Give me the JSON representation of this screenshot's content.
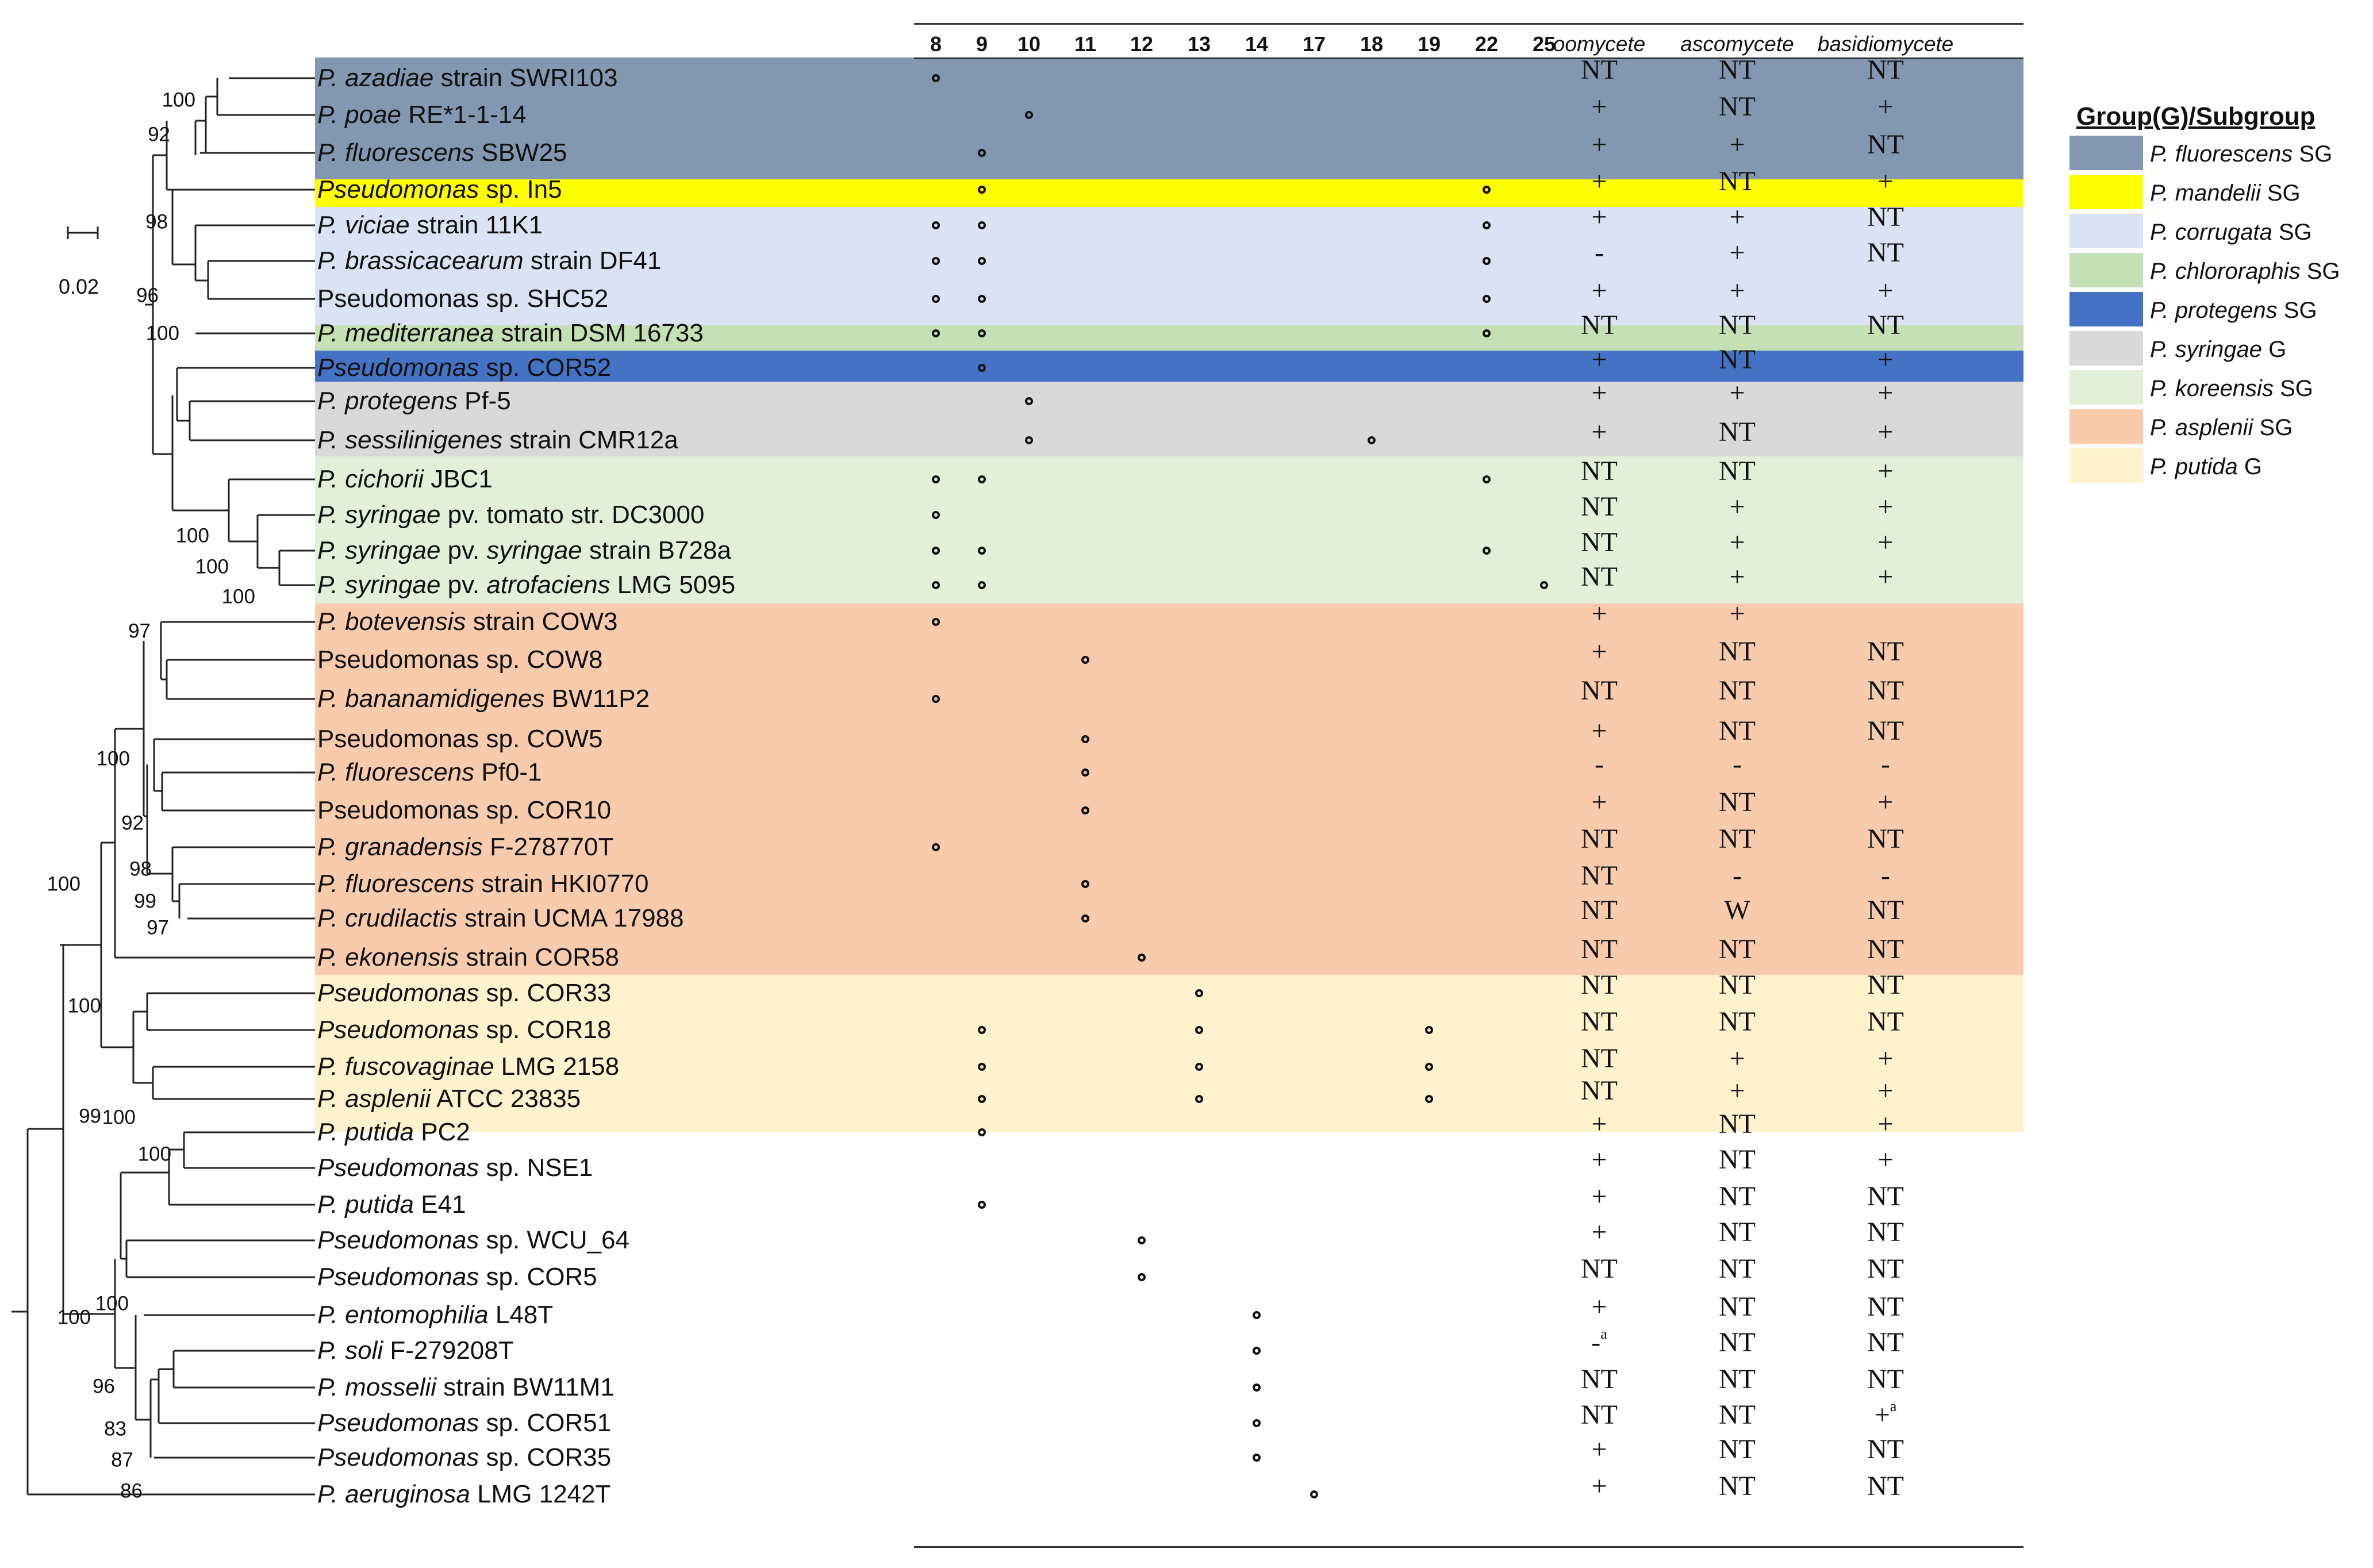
{
  "columns": [
    "8",
    "9",
    "10",
    "11",
    "12",
    "13",
    "14",
    "17",
    "18",
    "19",
    "22",
    "25"
  ],
  "test_columns": [
    "oomycete",
    "ascomycete",
    "basidiomycete"
  ],
  "scale_label": "0.02",
  "legend": {
    "title": "Group(G)/Subgroup",
    "items": [
      {
        "name": "P. fluorescens",
        "suffix": " SG",
        "color": "#8497b0"
      },
      {
        "name": "P. mandelii",
        "suffix": " SG",
        "color": "#ffff00"
      },
      {
        "name": "P. corrugata",
        "suffix": " SG",
        "color": "#dae3f3"
      },
      {
        "name": "P. chlororaphis",
        "suffix": " SG",
        "color": "#c5e0b4"
      },
      {
        "name": "P. protegens",
        "suffix": " SG",
        "color": "#4472c4"
      },
      {
        "name": "P. syringae",
        "suffix": " G",
        "color": "#d9d9d9"
      },
      {
        "name": "P. koreensis",
        "suffix": " SG",
        "color": "#e2f0d9"
      },
      {
        "name": "P. asplenii",
        "suffix": " SG",
        "color": "#f8cbad"
      },
      {
        "name": "P. putida",
        "suffix": " G",
        "color": "#fff2cc"
      }
    ]
  },
  "rows": [
    {
      "it": "P. azadiae",
      "rest": " strain SWRI103",
      "group": 0,
      "marks": [
        "8"
      ],
      "res": [
        "NT",
        "NT",
        "NT"
      ]
    },
    {
      "it": "P. poae",
      "rest": " RE*1-1-14",
      "group": 0,
      "marks": [
        "10"
      ],
      "res": [
        "+",
        "NT",
        "+"
      ]
    },
    {
      "it": "P. fluorescens",
      "rest": " SBW25",
      "group": 0,
      "marks": [
        "9"
      ],
      "res": [
        "+",
        "+",
        "NT"
      ]
    },
    {
      "it": "Pseudomonas",
      "rest": " sp. In5",
      "group": 1,
      "marks": [
        "9",
        "22"
      ],
      "res": [
        "+",
        "NT",
        "+"
      ]
    },
    {
      "it": "P. viciae",
      "rest": " strain 11K1",
      "group": 2,
      "marks": [
        "8",
        "9",
        "22"
      ],
      "res": [
        "+",
        "+",
        "NT"
      ]
    },
    {
      "it": "P. brassicacearum",
      "rest": " strain DF41",
      "group": 2,
      "marks": [
        "8",
        "9",
        "22"
      ],
      "res": [
        "-",
        "+",
        "NT"
      ]
    },
    {
      "it": "",
      "rest": "Pseudomonas sp. SHC52",
      "group": 2,
      "marks": [
        "8",
        "9",
        "22"
      ],
      "res": [
        "+",
        "+",
        "+"
      ]
    },
    {
      "it": "P. mediterranea",
      "rest": " strain DSM 16733",
      "group": 2,
      "marks": [
        "8",
        "9",
        "22"
      ],
      "res": [
        "NT",
        "NT",
        "NT"
      ]
    },
    {
      "it": "Pseudomonas",
      "rest": " sp. COR52",
      "group": 3,
      "marks": [
        "9"
      ],
      "res": [
        "+",
        "NT",
        "+"
      ]
    },
    {
      "it": "P. protegens",
      "rest": " Pf-5",
      "group": 4,
      "marks": [
        "10"
      ],
      "res": [
        "+",
        "+",
        "+"
      ]
    },
    {
      "it": "P. sessilinigenes",
      "rest": " strain CMR12a",
      "group": 4,
      "marks": [
        "10",
        "18"
      ],
      "res": [
        "+",
        "NT",
        "+"
      ]
    },
    {
      "it": "P. cichorii",
      "rest": " JBC1",
      "group": 5,
      "marks": [
        "8",
        "9",
        "22"
      ],
      "res": [
        "NT",
        "NT",
        "+"
      ]
    },
    {
      "it": "P. syringae",
      "rest": " pv. tomato str. DC3000",
      "group": 5,
      "marks": [
        "8"
      ],
      "res": [
        "NT",
        "+",
        "+"
      ]
    },
    {
      "it": "P. syringae",
      "rest": " pv. ",
      "it2": "syringae",
      "rest2": " strain B728a",
      "group": 5,
      "marks": [
        "8",
        "9",
        "22"
      ],
      "res": [
        "NT",
        "+",
        "+"
      ]
    },
    {
      "it": "P. syringae",
      "rest": " pv. ",
      "it2": "atrofaciens",
      "rest2": " LMG 5095",
      "group": 5,
      "marks": [
        "8",
        "9",
        "25"
      ],
      "res": [
        "NT",
        "+",
        "+"
      ]
    },
    {
      "it": "P. botevensis",
      "rest": " strain COW3",
      "group": 6,
      "marks": [
        "8"
      ],
      "res": [
        "+",
        "+",
        ""
      ]
    },
    {
      "it": "",
      "rest": "Pseudomonas sp. COW8",
      "group": 6,
      "marks": [
        "11"
      ],
      "res": [
        "+",
        "NT",
        "NT"
      ]
    },
    {
      "it": "P. bananamidigenes",
      "rest": "  BW11P2",
      "group": 6,
      "marks": [
        "8"
      ],
      "res": [
        "NT",
        "NT",
        "NT"
      ]
    },
    {
      "it": "",
      "rest": "Pseudomonas sp. COW5",
      "group": 6,
      "marks": [
        "11"
      ],
      "res": [
        "+",
        "NT",
        "NT"
      ]
    },
    {
      "it": "P. fluorescens",
      "rest": " Pf0-1",
      "group": 6,
      "marks": [
        "11"
      ],
      "res": [
        "-",
        "-",
        "-"
      ]
    },
    {
      "it": "",
      "rest": "Pseudomonas sp. COR10",
      "group": 6,
      "marks": [
        "11"
      ],
      "res": [
        "+",
        "NT",
        "+"
      ]
    },
    {
      "it": "P. granadensis",
      "rest": " F-278770T",
      "group": 6,
      "marks": [
        "8"
      ],
      "res": [
        "NT",
        "NT",
        "NT"
      ]
    },
    {
      "it": "P. fluorescens",
      "rest": " strain HKI0770",
      "group": 6,
      "marks": [
        "11"
      ],
      "res": [
        "NT",
        "-",
        "-"
      ]
    },
    {
      "it": "P. crudilactis",
      "rest": " strain UCMA 17988",
      "group": 6,
      "marks": [
        "11"
      ],
      "res": [
        "NT",
        "W",
        "NT"
      ]
    },
    {
      "it": "P. ekonensis",
      "rest": " strain COR58",
      "group": 6,
      "marks": [
        "12"
      ],
      "res": [
        "NT",
        "NT",
        "NT"
      ]
    },
    {
      "it": "Pseudomonas",
      "rest": " sp. COR33",
      "group": 7,
      "marks": [
        "13"
      ],
      "res": [
        "NT",
        "NT",
        "NT"
      ]
    },
    {
      "it": "Pseudomonas",
      "rest": " sp. COR18",
      "group": 7,
      "marks": [
        "9",
        "13",
        "19"
      ],
      "res": [
        "NT",
        "NT",
        "NT"
      ]
    },
    {
      "it": "P. fuscovaginae",
      "rest": " LMG 2158",
      "group": 7,
      "marks": [
        "9",
        "13",
        "19"
      ],
      "res": [
        "NT",
        "+",
        "+"
      ]
    },
    {
      "it": "P. asplenii",
      "rest": " ATCC 23835",
      "group": 7,
      "marks": [
        "9",
        "13",
        "19"
      ],
      "res": [
        "NT",
        "+",
        "+"
      ]
    },
    {
      "it": "P. putida",
      "rest": " PC2",
      "group": 8,
      "marks": [
        "9"
      ],
      "res": [
        "+",
        "NT",
        "+"
      ]
    },
    {
      "it": "Pseudomonas",
      "rest": " sp. NSE1",
      "group": 8,
      "marks": [],
      "res": [
        "+",
        "NT",
        "+"
      ]
    },
    {
      "it": "P. putida",
      "rest": " E41",
      "group": 8,
      "marks": [
        "9"
      ],
      "res": [
        "+",
        "NT",
        "NT"
      ]
    },
    {
      "it": "Pseudomonas",
      "rest": " sp. WCU_64",
      "group": 8,
      "marks": [
        "12"
      ],
      "res": [
        "+",
        "NT",
        "NT"
      ]
    },
    {
      "it": "Pseudomonas",
      "rest": " sp. COR5",
      "group": 8,
      "marks": [
        "12"
      ],
      "res": [
        "NT",
        "NT",
        "NT"
      ]
    },
    {
      "it": "P. entomophilia",
      "rest": " L48T",
      "group": 8,
      "marks": [
        "14"
      ],
      "res": [
        "+",
        "NT",
        "NT"
      ]
    },
    {
      "it": "P. soli",
      "rest": " F-279208T",
      "group": 8,
      "marks": [
        "14"
      ],
      "res": [
        "-|a",
        "NT",
        "NT"
      ]
    },
    {
      "it": "P. mosselii",
      "rest": " strain BW11M1",
      "group": 8,
      "marks": [
        "14"
      ],
      "res": [
        "NT",
        "NT",
        "NT"
      ]
    },
    {
      "it": "Pseudomonas",
      "rest": " sp. COR51",
      "group": 8,
      "marks": [
        "14"
      ],
      "res": [
        "NT",
        "NT",
        "+|a"
      ]
    },
    {
      "it": "Pseudomonas",
      "rest": " sp. COR35",
      "group": 8,
      "marks": [
        "14"
      ],
      "res": [
        "+",
        "NT",
        "NT"
      ]
    },
    {
      "it": "P. aeruginosa",
      "rest": " LMG 1242T",
      "group": -1,
      "marks": [
        "17"
      ],
      "res": [
        "+",
        "NT",
        "NT"
      ]
    }
  ],
  "bootstrap": [
    "100",
    "92",
    "98",
    "96",
    "100",
    "100",
    "100",
    "100",
    "97",
    "100",
    "92",
    "98",
    "99",
    "97",
    "100",
    "100",
    "99",
    "100",
    "100",
    "100",
    "100",
    "96",
    "83",
    "87",
    "86"
  ]
}
